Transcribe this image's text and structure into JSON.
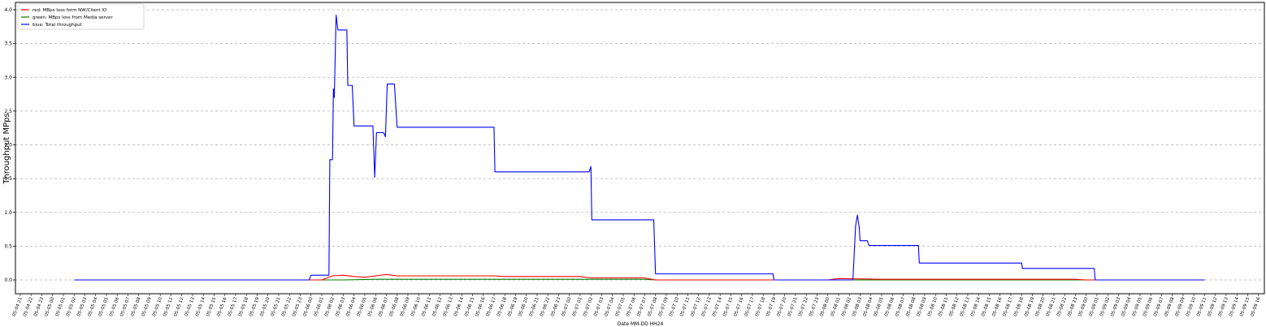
{
  "chart_data": {
    "type": "line",
    "title": "",
    "xlabel": "Date MM-DD HH24",
    "ylabel": "Throughput MPps",
    "ylim": [
      0,
      4.0
    ],
    "yticks": [
      0.0,
      0.5,
      1.0,
      1.5,
      2.0,
      2.5,
      3.0,
      3.5,
      4.0
    ],
    "ytick_labels": [
      "0.0",
      "0.5",
      "1.0",
      "1.5",
      "2.0",
      "2.5",
      "3.0",
      "3.5",
      "4.0"
    ],
    "grid": "horizontal-dashed",
    "legend_position": "top-left",
    "x_start": "05-04 21",
    "x_end": "05-09 16",
    "x_tick_labels": [
      "05-04 21",
      "05-04 22",
      "05-04 23",
      "05-05 00",
      "05-05 01",
      "05-05 02",
      "05-05 03",
      "05-05 04",
      "05-05 05",
      "05-05 06",
      "05-05 07",
      "05-05 08",
      "05-05 09",
      "05-05 10",
      "05-05 11",
      "05-05 12",
      "05-05 13",
      "05-05 14",
      "05-05 15",
      "05-05 16",
      "05-05 17",
      "05-05 18",
      "05-05 19",
      "05-05 20",
      "05-05 21",
      "05-05 22",
      "05-05 23",
      "05-06 00",
      "05-06 01",
      "05-06 02",
      "05-06 03",
      "05-06 04",
      "05-06 05",
      "05-06 06",
      "05-06 07",
      "05-06 08",
      "05-06 09",
      "05-06 10",
      "05-06 11",
      "05-06 12",
      "05-06 13",
      "05-06 14",
      "05-06 15",
      "05-06 16",
      "05-06 17",
      "05-06 18",
      "05-06 19",
      "05-06 20",
      "05-06 21",
      "05-06 22",
      "05-06 23",
      "05-07 00",
      "05-07 01",
      "05-07 02",
      "05-07 03",
      "05-07 04",
      "05-07 05",
      "05-07 06",
      "05-07 07",
      "05-07 08",
      "05-07 09",
      "05-07 10",
      "05-07 11",
      "05-07 12",
      "05-07 13",
      "05-07 14",
      "05-07 15",
      "05-07 16",
      "05-07 17",
      "05-07 18",
      "05-07 19",
      "05-07 20",
      "05-07 21",
      "05-07 22",
      "05-07 23",
      "05-08 00",
      "05-08 01",
      "05-08 02",
      "05-08 03",
      "05-08 04",
      "05-08 05",
      "05-08 06",
      "05-08 07",
      "05-08 08",
      "05-08 09",
      "05-08 10",
      "05-08 11",
      "05-08 12",
      "05-08 13",
      "05-08 14",
      "05-08 15",
      "05-08 16",
      "05-08 17",
      "05-08 18",
      "05-08 19",
      "05-08 20",
      "05-08 21",
      "05-08 22",
      "05-08 23",
      "05-09 00",
      "05-09 01",
      "05-09 02",
      "05-09 03",
      "05-09 04",
      "05-09 05",
      "05-09 06",
      "05-09 07",
      "05-09 08",
      "05-09 09",
      "05-09 10",
      "05-09 11",
      "05-09 12",
      "05-09 13",
      "05-09 14",
      "05-09 15",
      "05-09 16"
    ],
    "series": [
      {
        "name": "red: MBps loss form NW/Client IO",
        "color": "#ff0000",
        "points": [
          [
            "05-05 02",
            0.0
          ],
          [
            "05-06 01",
            0.0
          ],
          [
            "05-06 02",
            0.06
          ],
          [
            "05-06 03",
            0.07
          ],
          [
            "05-06 04",
            0.05
          ],
          [
            "05-06 05",
            0.04
          ],
          [
            "05-06 06",
            0.06
          ],
          [
            "05-06 07",
            0.08
          ],
          [
            "05-06 08",
            0.06
          ],
          [
            "05-06 17",
            0.06
          ],
          [
            "05-06 18",
            0.05
          ],
          [
            "05-07 01",
            0.05
          ],
          [
            "05-07 02",
            0.03
          ],
          [
            "05-07 07",
            0.03
          ],
          [
            "05-07 08",
            0.0
          ],
          [
            "05-08 00",
            0.0
          ],
          [
            "05-08 01",
            0.02
          ],
          [
            "05-08 05",
            0.01
          ],
          [
            "05-08 23",
            0.01
          ],
          [
            "05-09 00",
            0.0
          ],
          [
            "05-09 11",
            0.0
          ]
        ]
      },
      {
        "name": "green: MBps loss from Media server",
        "color": "#008000",
        "points": [
          [
            "05-05 02",
            0.0
          ],
          [
            "05-06 03",
            0.0
          ],
          [
            "05-06 06",
            0.01
          ],
          [
            "05-07 07",
            0.01
          ],
          [
            "05-07 08",
            0.0
          ],
          [
            "05-09 11",
            0.0
          ]
        ]
      },
      {
        "name": "blue: Total throughput",
        "color": "#0000ff",
        "points": [
          [
            "05-05 02",
            0.0
          ],
          [
            "05-05 23 50",
            0.0
          ],
          [
            "05-06 00",
            0.07
          ],
          [
            "05-06 01 40",
            0.07
          ],
          [
            "05-06 01 45",
            1.78
          ],
          [
            "05-06 02",
            1.78
          ],
          [
            "05-06 02 05",
            2.83
          ],
          [
            "05-06 02 10",
            2.7
          ],
          [
            "05-06 02 20",
            3.92
          ],
          [
            "05-06 02 30",
            3.7
          ],
          [
            "05-06 03 20",
            3.7
          ],
          [
            "05-06 03 25",
            2.88
          ],
          [
            "05-06 03 50",
            2.88
          ],
          [
            "05-06 04",
            2.28
          ],
          [
            "05-06 05 45",
            2.28
          ],
          [
            "05-06 05 55",
            1.52
          ],
          [
            "05-06 06 05",
            2.18
          ],
          [
            "05-06 06 45",
            2.18
          ],
          [
            "05-06 06 55",
            2.12
          ],
          [
            "05-06 07 05",
            2.9
          ],
          [
            "05-06 07 45",
            2.9
          ],
          [
            "05-06 08",
            2.26
          ],
          [
            "05-06 17",
            2.26
          ],
          [
            "05-06 17 05",
            1.6
          ],
          [
            "05-07 01 50",
            1.6
          ],
          [
            "05-07 02",
            1.68
          ],
          [
            "05-07 02 05",
            0.89
          ],
          [
            "05-07 07 50",
            0.89
          ],
          [
            "05-07 08",
            0.09
          ],
          [
            "05-07 18 55",
            0.09
          ],
          [
            "05-07 19",
            0.0
          ],
          [
            "05-08 02 20",
            0.0
          ],
          [
            "05-08 02 35",
            0.8
          ],
          [
            "05-08 02 45",
            0.96
          ],
          [
            "05-08 02 55",
            0.78
          ],
          [
            "05-08 03",
            0.58
          ],
          [
            "05-08 03 40",
            0.58
          ],
          [
            "05-08 03 50",
            0.51
          ],
          [
            "05-08 08 25",
            0.51
          ],
          [
            "05-08 08 30",
            0.25
          ],
          [
            "05-08 18 00",
            0.25
          ],
          [
            "05-08 18 05",
            0.17
          ],
          [
            "05-09 00 45",
            0.17
          ],
          [
            "05-09 00 50",
            0.0
          ],
          [
            "05-09 11",
            0.0
          ]
        ]
      }
    ]
  }
}
